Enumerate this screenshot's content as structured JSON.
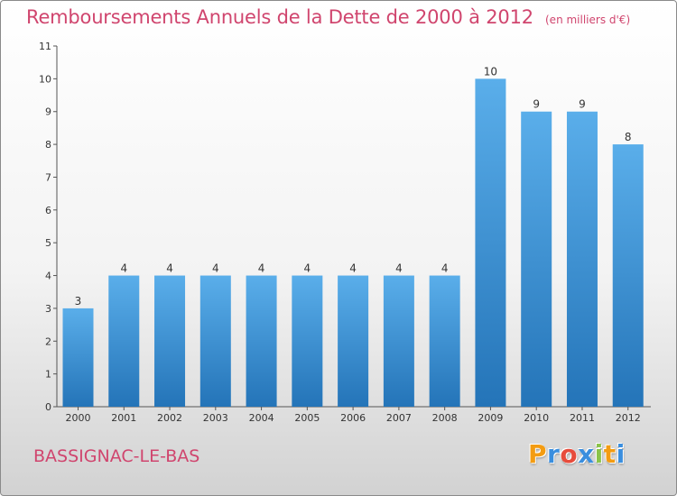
{
  "title": "Remboursements Annuels de la Dette de 2000 à 2012",
  "unit": "(en milliers d'€)",
  "commune": "BASSIGNAC-LE-BAS",
  "brand": {
    "letters": [
      "P",
      "r",
      "o",
      "x",
      "i",
      "t",
      "i"
    ],
    "colors": [
      "#f39c12",
      "#3a8ede",
      "#e74c3c",
      "#3a8ede",
      "#8bc34a",
      "#f39c12",
      "#3a8ede"
    ]
  },
  "colors": {
    "bar_light": "#5aaeea",
    "bar_dark": "#2474b8",
    "title": "#d0456e"
  },
  "chart_data": {
    "type": "bar",
    "categories": [
      "2000",
      "2001",
      "2002",
      "2003",
      "2004",
      "2005",
      "2006",
      "2007",
      "2008",
      "2009",
      "2010",
      "2011",
      "2012"
    ],
    "values": [
      3,
      4,
      4,
      4,
      4,
      4,
      4,
      4,
      4,
      10,
      9,
      9,
      8
    ],
    "data_labels": [
      "3",
      "4",
      "4",
      "4",
      "4",
      "4",
      "4",
      "4",
      "4",
      "10",
      "9",
      "9",
      "8"
    ],
    "y_ticks": [
      0,
      1,
      2,
      3,
      4,
      5,
      6,
      7,
      8,
      9,
      10,
      11
    ],
    "ylim": [
      0,
      11
    ],
    "grid": false,
    "legend": "none"
  }
}
